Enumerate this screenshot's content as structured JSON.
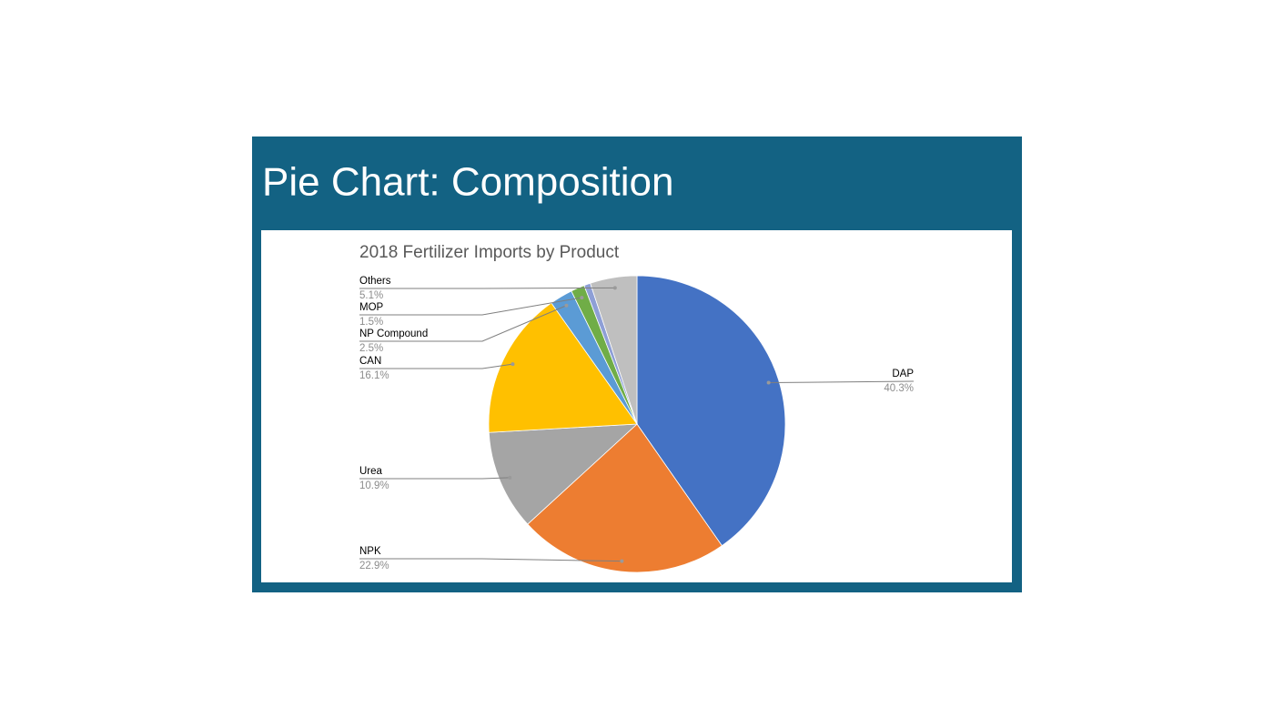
{
  "slide": {
    "title": "Pie Chart: Composition"
  },
  "chart_data": {
    "type": "pie",
    "title": "2018 Fertilizer Imports by Product",
    "categories": [
      "DAP",
      "NPK",
      "Urea",
      "CAN",
      "NP Compound",
      "MOP",
      null,
      "Others"
    ],
    "values": [
      40.3,
      22.9,
      10.9,
      16.1,
      2.5,
      1.5,
      0.7,
      5.1
    ],
    "value_labels": [
      "40.3%",
      "22.9%",
      "10.9%",
      "16.1%",
      "2.5%",
      "1.5%",
      null,
      "5.1%"
    ],
    "colors": [
      "#4472c4",
      "#ed7d31",
      "#a5a5a5",
      "#ffc000",
      "#5b9bd5",
      "#70ad47",
      "#8e9fd6",
      "#bfbfbf"
    ]
  }
}
